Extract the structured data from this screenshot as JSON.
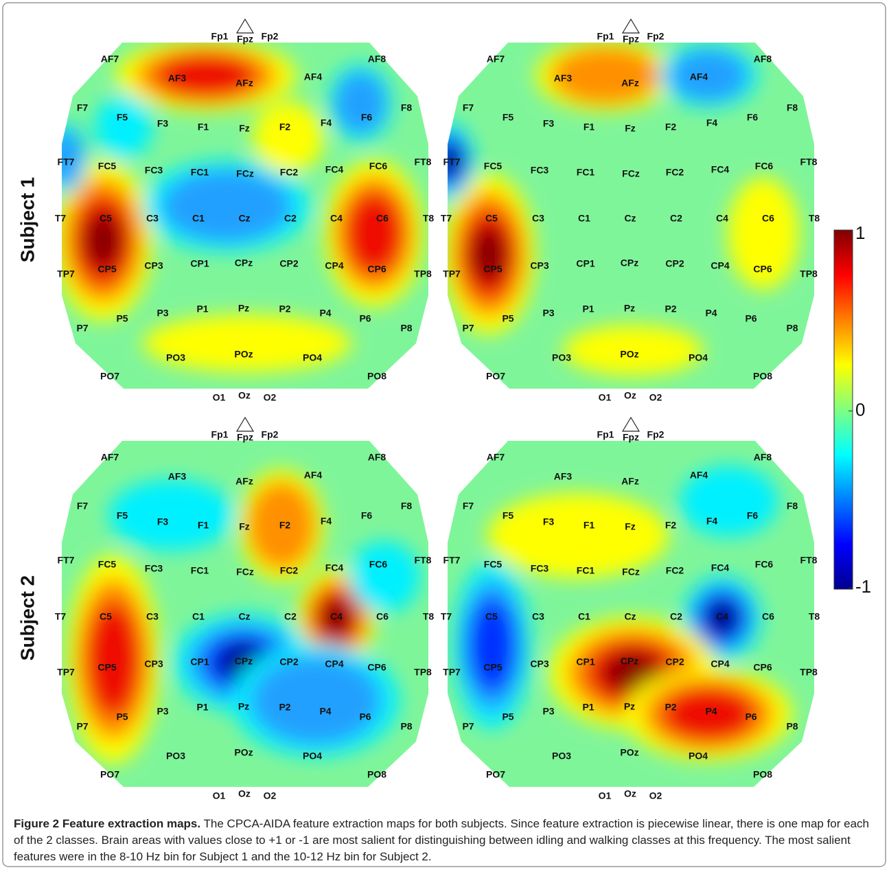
{
  "figure": {
    "row_labels": [
      "Subject 1",
      "Subject 2"
    ],
    "electrodes": [
      "Fp1",
      "Fpz",
      "Fp2",
      "AF7",
      "AF8",
      "AF3",
      "AFz",
      "AF4",
      "F7",
      "F5",
      "F3",
      "F1",
      "Fz",
      "F2",
      "F4",
      "F6",
      "F8",
      "FT7",
      "FC5",
      "FC3",
      "FC1",
      "FCz",
      "FC2",
      "FC4",
      "FC6",
      "FT8",
      "T7",
      "C5",
      "C3",
      "C1",
      "Cz",
      "C2",
      "C4",
      "C6",
      "T8",
      "TP7",
      "CP5",
      "CP3",
      "CP1",
      "CPz",
      "CP2",
      "CP4",
      "CP6",
      "TP8",
      "P7",
      "P5",
      "P3",
      "P1",
      "Pz",
      "P2",
      "P4",
      "P6",
      "P8",
      "PO7",
      "PO3",
      "POz",
      "PO4",
      "PO8",
      "O1",
      "Oz",
      "O2"
    ],
    "colorbar": {
      "lim": [
        -1,
        1
      ],
      "ticks": [
        1,
        0,
        -1
      ]
    },
    "caption": {
      "label": "Figure 2",
      "title": "Feature extraction maps.",
      "text": "The CPCA-AIDA feature extraction maps for both subjects. Since feature extraction is piecewise linear, there is one map for each of the 2 classes. Brain areas with values close to +1 or -1 are most salient for distinguishing between idling and walking classes at this frequency. The most salient features were in the 8-10 Hz bin for Subject 1 and the 10-12 Hz bin for Subject 2."
    }
  }
}
